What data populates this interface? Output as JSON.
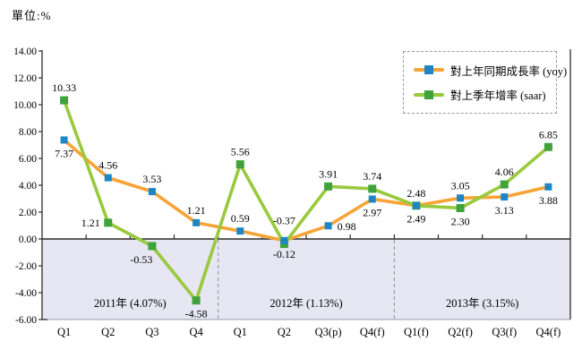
{
  "chart_data": {
    "type": "line",
    "unit_label": "單位:%",
    "categories": [
      "Q1",
      "Q2",
      "Q3",
      "Q4",
      "Q1",
      "Q2",
      "Q3(p)",
      "Q4(f)",
      "Q1(f)",
      "Q2(f)",
      "Q3(f)",
      "Q4(f)"
    ],
    "ylim": [
      -6,
      14
    ],
    "y_ticks": [
      14,
      12,
      10,
      8,
      6,
      4,
      2,
      0,
      -2,
      -4,
      -6
    ],
    "y_tick_labels": [
      "14.00",
      "12.00",
      "10.00",
      "8.00",
      "6.00",
      "4.00",
      "2.00",
      "0.00",
      "-2.00",
      "-4.00",
      "-6.00"
    ],
    "grid": false,
    "legend_position": "top-right",
    "series": [
      {
        "id": "yoy",
        "name": "對上年同期成長率 (yoy)",
        "line_color": "#F7A437",
        "marker_color": "#1E86C5",
        "values": [
          7.37,
          4.56,
          3.53,
          1.21,
          0.59,
          -0.12,
          0.98,
          2.97,
          2.49,
          3.05,
          3.13,
          3.88
        ],
        "label_pos": [
          "below",
          "above",
          "above",
          "above",
          "above",
          "below",
          "right",
          "below",
          "below",
          "above",
          "below",
          "below"
        ]
      },
      {
        "id": "saar",
        "name": "對上季年增率 (saar)",
        "line_color": "#99C93C",
        "marker_color": "#3FA23A",
        "values": [
          10.33,
          1.21,
          -0.53,
          -4.58,
          5.56,
          -0.37,
          3.91,
          3.74,
          2.48,
          2.3,
          4.06,
          6.85
        ],
        "label_pos": [
          "above",
          "left",
          "below-left",
          "below",
          "above",
          "above-far",
          "above",
          "above",
          "above",
          "below",
          "above",
          "above"
        ]
      }
    ],
    "year_bands": [
      {
        "label": "2011年 (4.07%)",
        "start": 0,
        "end": 4
      },
      {
        "label": "2012年 (1.13%)",
        "start": 4,
        "end": 8
      },
      {
        "label": "2013年 (3.15%)",
        "start": 8,
        "end": 12
      }
    ],
    "colors": {
      "negative_region": "#E7E6F3",
      "axis": "#3b3b3b",
      "separator": "#909090",
      "text": "#000000"
    }
  }
}
